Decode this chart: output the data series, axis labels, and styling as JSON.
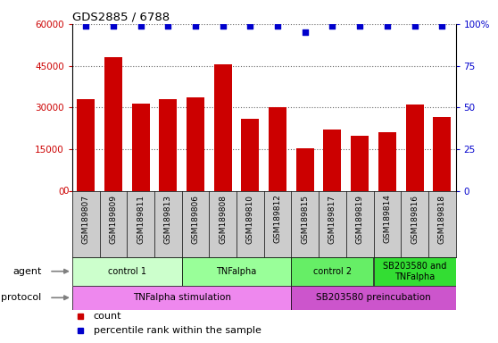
{
  "title": "GDS2885 / 6788",
  "samples": [
    "GSM189807",
    "GSM189809",
    "GSM189811",
    "GSM189813",
    "GSM189806",
    "GSM189808",
    "GSM189810",
    "GSM189812",
    "GSM189815",
    "GSM189817",
    "GSM189819",
    "GSM189814",
    "GSM189816",
    "GSM189818"
  ],
  "counts": [
    33000,
    48000,
    31500,
    33000,
    33500,
    45500,
    26000,
    30000,
    15500,
    22000,
    20000,
    21000,
    31000,
    26500
  ],
  "percentile_ranks": [
    99,
    99,
    99,
    99,
    99,
    99,
    99,
    99,
    95,
    99,
    99,
    99,
    99,
    99
  ],
  "bar_color": "#cc0000",
  "dot_color": "#0000cc",
  "ylim_left": [
    0,
    60000
  ],
  "ylim_right": [
    0,
    100
  ],
  "yticks_left": [
    0,
    15000,
    30000,
    45000,
    60000
  ],
  "yticks_right": [
    0,
    25,
    50,
    75,
    100
  ],
  "ytick_labels_right": [
    "0",
    "25",
    "50",
    "75",
    "100%"
  ],
  "agent_groups": [
    {
      "label": "control 1",
      "start": 0,
      "end": 3,
      "color": "#ccffcc"
    },
    {
      "label": "TNFalpha",
      "start": 4,
      "end": 7,
      "color": "#99ff99"
    },
    {
      "label": "control 2",
      "start": 8,
      "end": 10,
      "color": "#66ee66"
    },
    {
      "label": "SB203580 and\nTNFalpha",
      "start": 11,
      "end": 13,
      "color": "#33dd33"
    }
  ],
  "protocol_groups": [
    {
      "label": "TNFalpha stimulation",
      "start": 0,
      "end": 7,
      "color": "#ee88ee"
    },
    {
      "label": "SB203580 preincubation",
      "start": 8,
      "end": 13,
      "color": "#cc55cc"
    }
  ],
  "sample_bg_color": "#cccccc",
  "legend_count_color": "#cc0000",
  "legend_dot_color": "#0000cc"
}
